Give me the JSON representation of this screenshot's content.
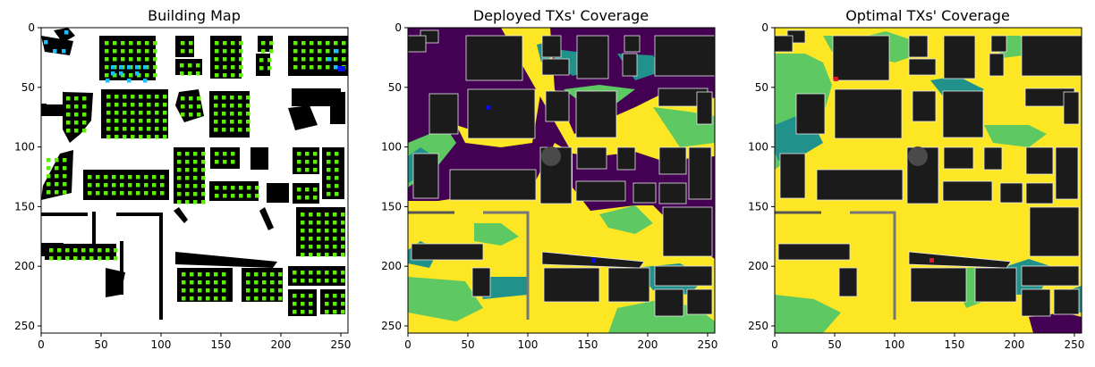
{
  "figure": {
    "panels": [
      {
        "id": "building-map",
        "title": "Building Map"
      },
      {
        "id": "deployed-coverage",
        "title": "Deployed TXs' Coverage"
      },
      {
        "id": "optimal-coverage",
        "title": "Optimal TXs' Coverage"
      }
    ],
    "axis_ticks": [
      "0",
      "50",
      "100",
      "150",
      "200",
      "250"
    ]
  },
  "colors": {
    "building": "#000000",
    "candidate_green": "#5cf000",
    "candidate_cyan": "#19c0ff",
    "deployed_tx_blue": "#0a0af5",
    "optimal_tx_red": "#e0182a",
    "viridis_dark": "#440154",
    "viridis_teal": "#21918c",
    "viridis_green": "#5ec962",
    "viridis_yellow": "#fde725",
    "building_gray": "#1b1b1b"
  },
  "chart_data": [
    {
      "type": "heatmap",
      "title": "Building Map",
      "xlim": [
        0,
        256
      ],
      "ylim": [
        256,
        0
      ],
      "xticks": [
        0,
        50,
        100,
        150,
        200,
        250
      ],
      "yticks": [
        0,
        50,
        100,
        150,
        200,
        250
      ],
      "markers": [
        {
          "label": "deployed TX",
          "x": 252,
          "y": 35,
          "color": "blue"
        }
      ]
    },
    {
      "type": "heatmap",
      "title": "Deployed TXs' Coverage",
      "xlim": [
        0,
        256
      ],
      "ylim": [
        256,
        0
      ],
      "xticks": [
        0,
        50,
        100,
        150,
        200,
        250
      ],
      "yticks": [
        0,
        50,
        100,
        150,
        200,
        250
      ],
      "tx": [
        {
          "x": 67,
          "y": 67,
          "color": "blue"
        },
        {
          "x": 155,
          "y": 195,
          "color": "blue"
        }
      ]
    },
    {
      "type": "heatmap",
      "title": "Optimal TXs' Coverage",
      "xlim": [
        0,
        256
      ],
      "ylim": [
        256,
        0
      ],
      "xticks": [
        0,
        50,
        100,
        150,
        200,
        250
      ],
      "yticks": [
        0,
        50,
        100,
        150,
        200,
        250
      ],
      "tx": [
        {
          "x": 51,
          "y": 43,
          "color": "red"
        },
        {
          "x": 131,
          "y": 195,
          "color": "red"
        }
      ]
    }
  ]
}
